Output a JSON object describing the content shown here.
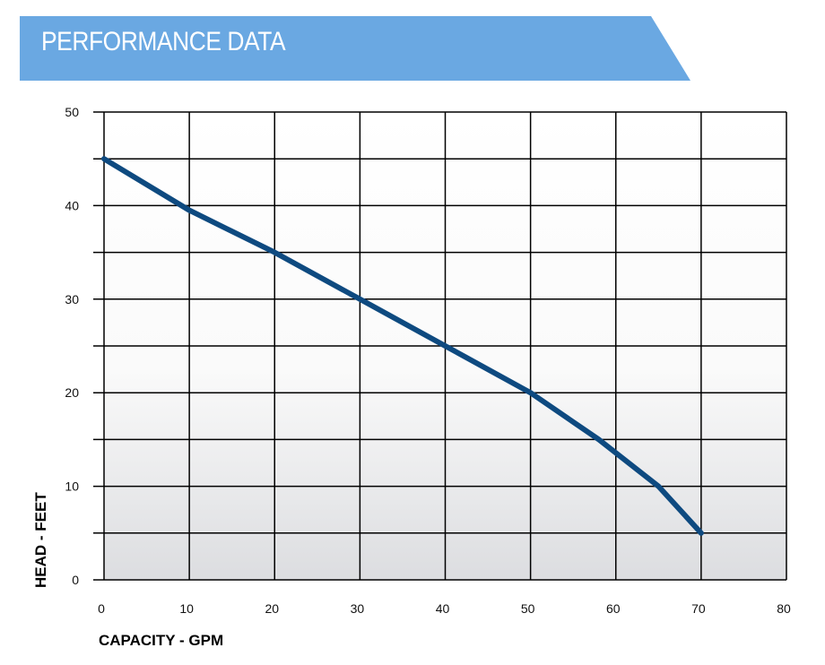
{
  "header": {
    "title": "PERFORMANCE DATA"
  },
  "colors": {
    "banner": "#6aa8e2",
    "line": "#0e4a80",
    "grid": "#000000"
  },
  "chart_data": {
    "type": "line",
    "title": "PERFORMANCE DATA",
    "xlabel": "CAPACITY - GPM",
    "ylabel": "HEAD - FEET",
    "xlim": [
      0,
      80
    ],
    "ylim": [
      0,
      50
    ],
    "x_ticks": [
      0,
      10,
      20,
      30,
      40,
      50,
      60,
      70,
      80
    ],
    "y_ticks": [
      0,
      10,
      20,
      30,
      40,
      50
    ],
    "grid": true,
    "series": [
      {
        "x": [
          0,
          10,
          20,
          30,
          40,
          50,
          58,
          65,
          70
        ],
        "y": [
          45,
          39.5,
          35,
          30,
          25,
          20,
          15,
          10,
          5
        ]
      }
    ]
  }
}
